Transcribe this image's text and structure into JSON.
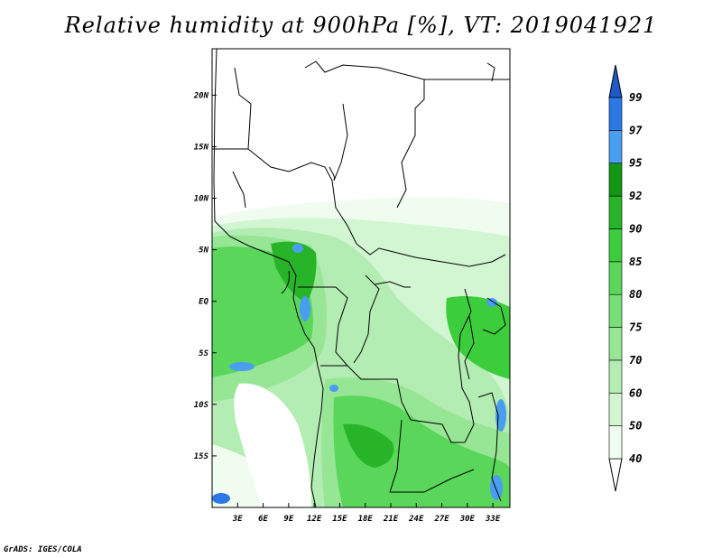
{
  "title": "Relative humidity at 900hPa [%], VT: 2019041921",
  "credit": "GrADS: IGES/COLA",
  "map": {
    "lon_range": [
      0,
      35
    ],
    "lat_range": [
      -20,
      24.5
    ],
    "lon_ticks": [
      {
        "value": 3,
        "label": "3E"
      },
      {
        "value": 6,
        "label": "6E"
      },
      {
        "value": 9,
        "label": "9E"
      },
      {
        "value": 12,
        "label": "12E"
      },
      {
        "value": 15,
        "label": "15E"
      },
      {
        "value": 18,
        "label": "18E"
      },
      {
        "value": 21,
        "label": "21E"
      },
      {
        "value": 24,
        "label": "24E"
      },
      {
        "value": 27,
        "label": "27E"
      },
      {
        "value": 30,
        "label": "30E"
      },
      {
        "value": 33,
        "label": "33E"
      }
    ],
    "lat_ticks": [
      {
        "value": 20,
        "label": "20N"
      },
      {
        "value": 15,
        "label": "15N"
      },
      {
        "value": 10,
        "label": "10N"
      },
      {
        "value": 5,
        "label": "5N"
      },
      {
        "value": 0,
        "label": "EQ"
      },
      {
        "value": -5,
        "label": "5S"
      },
      {
        "value": -10,
        "label": "10S"
      },
      {
        "value": -15,
        "label": "15S"
      }
    ]
  },
  "colorbar": {
    "levels": [
      "40",
      "50",
      "60",
      "70",
      "75",
      "80",
      "85",
      "90",
      "92",
      "95",
      "97",
      "99"
    ],
    "colors": [
      "#f0fcf0",
      "#d2f5d2",
      "#b4edb4",
      "#96e696",
      "#78de78",
      "#5ad65a",
      "#3ccd3c",
      "#28b428",
      "#139613",
      "#4a9ef0",
      "#2c78e6",
      "#1e5ac8"
    ],
    "below_color": "#ffffff",
    "above_color": "#1e5ac8"
  }
}
